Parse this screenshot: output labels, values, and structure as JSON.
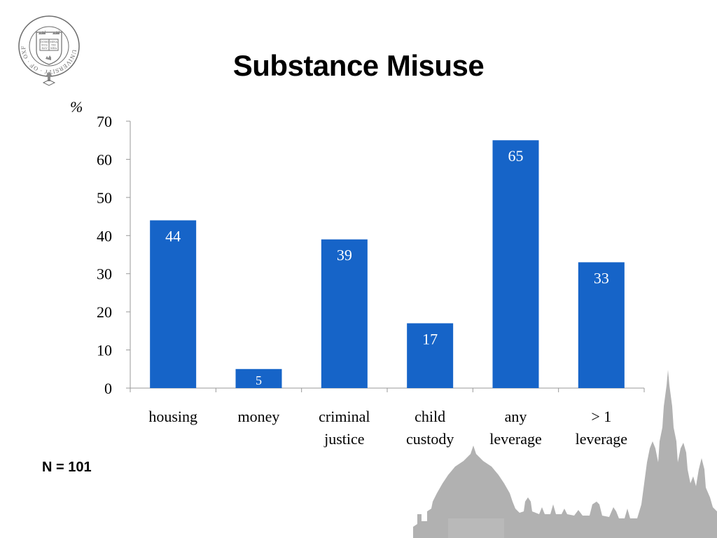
{
  "slide": {
    "title": "Substance Misuse",
    "note": "N = 101"
  },
  "logo": {
    "icon": "university-crest-icon",
    "ring_text": "UNIVERSITY · OF · OXFORD",
    "book_text": [
      "DOMI",
      "NUS",
      "ILLV",
      "MINA",
      "TIO",
      "MEA"
    ]
  },
  "colors": {
    "bar": "#1664C8",
    "bar_label": "#ffffff",
    "axis": "#999999",
    "text": "#000000",
    "skyline": "#a8a8a8"
  },
  "chart_data": {
    "type": "bar",
    "title": "",
    "xlabel": "",
    "ylabel": "%",
    "categories": [
      [
        "housing"
      ],
      [
        "money"
      ],
      [
        "criminal",
        "justice"
      ],
      [
        "child",
        "custody"
      ],
      [
        "any",
        "leverage"
      ],
      [
        "> 1",
        "leverage"
      ]
    ],
    "values": [
      44,
      5,
      39,
      17,
      65,
      33
    ],
    "ylim": [
      0,
      70
    ],
    "yticks": [
      0,
      10,
      20,
      30,
      40,
      50,
      60,
      70
    ],
    "grid": false,
    "data_labels": true
  }
}
